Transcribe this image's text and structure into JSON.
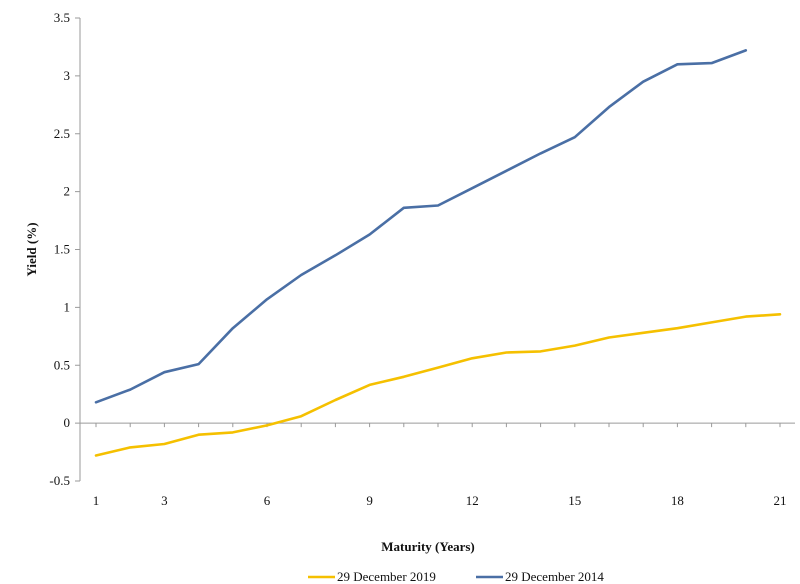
{
  "chart_data": {
    "type": "line",
    "title": "",
    "xlabel": "Maturity (Years)",
    "ylabel": "Yield (%)",
    "xlim": [
      1,
      21
    ],
    "ylim": [
      -0.5,
      3.5
    ],
    "x_ticks": [
      1,
      3,
      6,
      9,
      12,
      15,
      18,
      21
    ],
    "y_ticks": [
      -0.5,
      0,
      0.5,
      1,
      1.5,
      2,
      2.5,
      3,
      3.5
    ],
    "y_tick_labels": [
      "-0.5",
      "0",
      "0.5",
      "1",
      "1.5",
      "2",
      "2.5",
      "3",
      "3.5"
    ],
    "grid": false,
    "legend_position": "bottom",
    "series": [
      {
        "name": "29 December 2019",
        "color": "#f5c000",
        "x": [
          1,
          2,
          3,
          4,
          5,
          6,
          7,
          8,
          9,
          10,
          11,
          12,
          13,
          14,
          15,
          16,
          17,
          18,
          19,
          20,
          21
        ],
        "values": [
          -0.28,
          -0.21,
          -0.18,
          -0.1,
          -0.08,
          -0.02,
          0.06,
          0.2,
          0.33,
          0.4,
          0.48,
          0.56,
          0.61,
          0.62,
          0.67,
          0.74,
          0.78,
          0.82,
          0.87,
          0.92,
          0.94
        ]
      },
      {
        "name": "29 December 2014",
        "color": "#4a6fa5",
        "x": [
          1,
          2,
          3,
          4,
          5,
          6,
          7,
          8,
          9,
          10,
          11,
          12,
          13,
          14,
          15,
          16,
          17,
          18,
          19,
          20
        ],
        "values": [
          0.18,
          0.29,
          0.44,
          0.51,
          0.82,
          1.07,
          1.28,
          1.45,
          1.63,
          1.86,
          1.88,
          2.03,
          2.18,
          2.33,
          2.47,
          2.73,
          2.95,
          3.1,
          3.11,
          3.22
        ]
      }
    ]
  }
}
